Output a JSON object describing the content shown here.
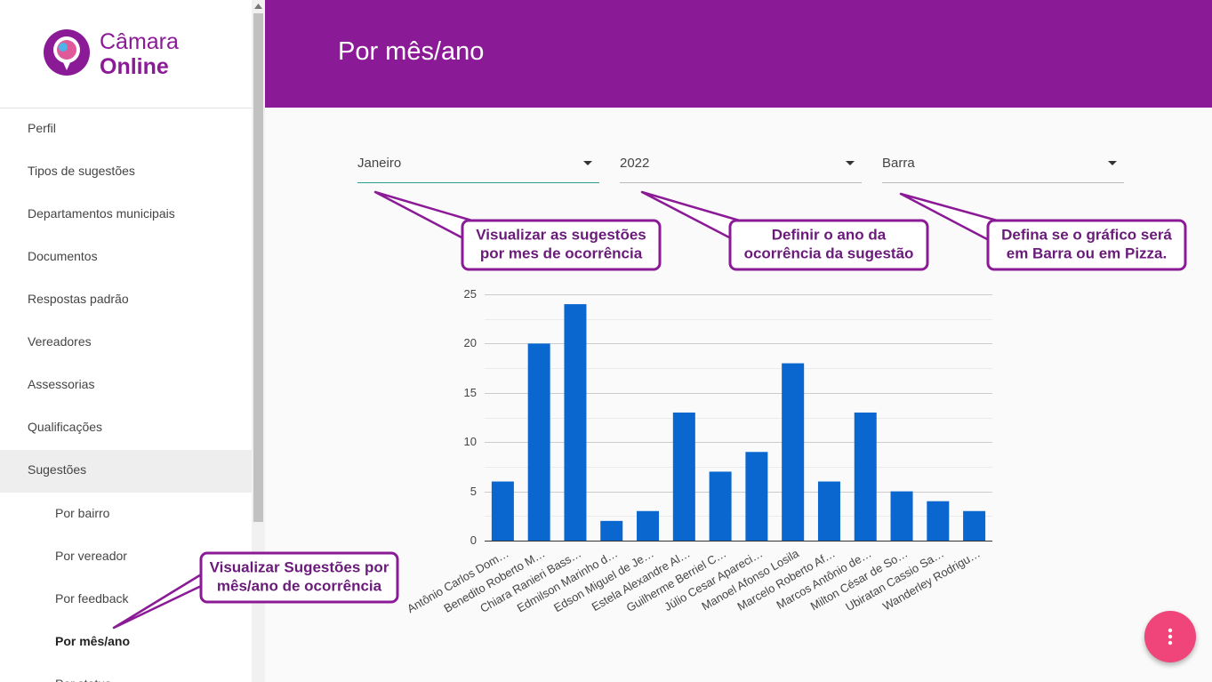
{
  "sidebar": {
    "logo": [
      "Câmara",
      "Online"
    ],
    "menu": [
      "Perfil",
      "Tipos de sugestões",
      "Departamentos municipais",
      "Documentos",
      "Respostas padrão",
      "Vereadores",
      "Assessorias",
      "Qualificações",
      "Sugestões"
    ],
    "submenu": [
      "Por bairro",
      "Por vereador",
      "Por feedback",
      "Por mês/ano",
      "Por status"
    ]
  },
  "header": {
    "title": "Por mês/ano"
  },
  "filters": [
    "Janeiro",
    "2022",
    "Barra"
  ],
  "callouts": [
    [
      "Visualizar as sugestões",
      "por mes de ocorrência"
    ],
    [
      "Definir o ano da",
      "ocorrência da sugestão"
    ],
    [
      "Defina se o gráfico será",
      "em Barra ou em Pizza."
    ],
    [
      "Visualizar Sugestões por",
      "mês/ano de ocorrência"
    ]
  ],
  "chart_data": {
    "type": "bar",
    "categories": [
      "Antônio Carlos Dom…",
      "Benedito Roberto M…",
      "Chiara Ranieri Bass…",
      "Edmilson Marinho d…",
      "Edson Miguel de Je…",
      "Estela Alexandre Al…",
      "Guilherme Berriel C…",
      "Júlio Cesar Apareci…",
      "Manoel Afonso Losila",
      "Marcelo Roberto Af…",
      "Marcos Antônio de…",
      "Milton César de So…",
      "Ubiratan Cassio Sa…",
      "Wanderley Rodrigu…"
    ],
    "values": [
      6,
      20,
      24,
      2,
      3,
      13,
      7,
      9,
      18,
      6,
      13,
      5,
      4,
      3
    ],
    "color": "#0b67d0",
    "ylim": [
      0,
      25
    ],
    "yticks": [
      0,
      5,
      10,
      15,
      20,
      25
    ],
    "minor_yticks": [
      2.5,
      7.5,
      12.5,
      17.5,
      22.5
    ],
    "grid": true
  }
}
